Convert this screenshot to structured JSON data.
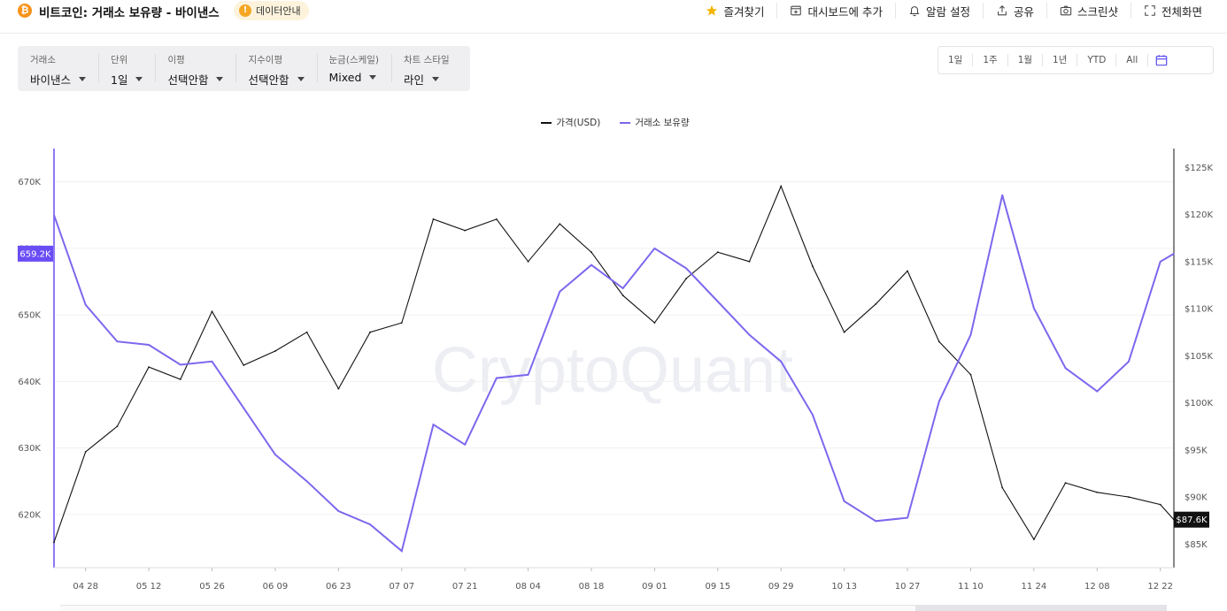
{
  "header": {
    "coin_symbol": "₿",
    "title": "비트코인: 거래소 보유량 - 바이낸스",
    "badge_label": "데이터안내",
    "actions": [
      {
        "label": "즐겨찾기",
        "icon": "star-icon"
      },
      {
        "label": "대시보드에 추가",
        "icon": "dashboard-add-icon"
      },
      {
        "label": "알람 설정",
        "icon": "bell-icon"
      },
      {
        "label": "공유",
        "icon": "share-icon"
      },
      {
        "label": "스크린샷",
        "icon": "camera-icon"
      },
      {
        "label": "전체화면",
        "icon": "fullscreen-icon"
      }
    ]
  },
  "controls": [
    {
      "caption": "거래소",
      "value": "바이낸스"
    },
    {
      "caption": "단위",
      "value": "1일"
    },
    {
      "caption": "이평",
      "value": "선택안함"
    },
    {
      "caption": "지수이평",
      "value": "선택안함"
    },
    {
      "caption": "눈금(스케일)",
      "value": "Mixed"
    },
    {
      "caption": "차트 스타일",
      "value": "라인"
    }
  ],
  "range_buttons": [
    "1일",
    "1주",
    "1월",
    "1년",
    "YTD",
    "All"
  ],
  "colors": {
    "price_line": "#111111",
    "reserve_line": "#7b68ee",
    "reserve_badge": "#6a4df5",
    "price_badge": "#111111",
    "star": "#f5b400",
    "coin": "#f7931a"
  },
  "chart_data": {
    "type": "line",
    "watermark": "CryptoQuant",
    "x_tick_labels": [
      "04 28",
      "05 12",
      "05 26",
      "06 09",
      "06 23",
      "07 07",
      "07 21",
      "08 04",
      "08 18",
      "09 01",
      "09 15",
      "09 29",
      "10 13",
      "10 27",
      "11 10",
      "11 24",
      "12 08",
      "12 22"
    ],
    "left_axis": {
      "ticks": [
        "670K",
        "660K",
        "650K",
        "640K",
        "630K",
        "620K"
      ],
      "range": [
        612000,
        675000
      ]
    },
    "right_axis": {
      "ticks": [
        "$125K",
        "$120K",
        "$115K",
        "$110K",
        "$105K",
        "$100K",
        "$95K",
        "$90K",
        "$85K"
      ],
      "range": [
        82500,
        127000
      ]
    },
    "current_reserve_label": "659.2K",
    "current_price_label": "$87.6K",
    "series": [
      {
        "name": "가격(USD)",
        "axis": "right",
        "dates": [
          "04-21",
          "04-28",
          "05-05",
          "05-12",
          "05-19",
          "05-26",
          "06-02",
          "06-09",
          "06-16",
          "06-23",
          "06-30",
          "07-07",
          "07-14",
          "07-21",
          "07-28",
          "08-04",
          "08-11",
          "08-18",
          "08-25",
          "09-01",
          "09-08",
          "09-15",
          "09-22",
          "09-29",
          "10-06",
          "10-13",
          "10-20",
          "10-27",
          "11-03",
          "11-10",
          "11-17",
          "11-24",
          "12-01",
          "12-08",
          "12-15",
          "12-22",
          "12-25"
        ],
        "values": [
          85200,
          94800,
          97500,
          103800,
          102500,
          109700,
          104000,
          105500,
          107500,
          101500,
          107500,
          108500,
          119500,
          118300,
          119500,
          115000,
          119000,
          116000,
          111400,
          108500,
          113200,
          116000,
          115000,
          123000,
          114500,
          107500,
          110500,
          114000,
          106500,
          103000,
          91000,
          85500,
          91500,
          90500,
          90000,
          89200,
          87600
        ]
      },
      {
        "name": "거래소 보유량",
        "axis": "left",
        "dates": [
          "04-21",
          "04-28",
          "05-05",
          "05-12",
          "05-19",
          "05-26",
          "06-02",
          "06-09",
          "06-16",
          "06-23",
          "06-30",
          "07-07",
          "07-14",
          "07-21",
          "07-28",
          "08-04",
          "08-11",
          "08-18",
          "08-25",
          "09-01",
          "09-08",
          "09-15",
          "09-22",
          "09-29",
          "10-06",
          "10-13",
          "10-20",
          "10-27",
          "11-03",
          "11-10",
          "11-17",
          "11-24",
          "12-01",
          "12-08",
          "12-15",
          "12-22",
          "12-25"
        ],
        "values": [
          665000,
          651500,
          646000,
          645500,
          642500,
          643000,
          636000,
          629000,
          625000,
          620500,
          618500,
          614500,
          633500,
          630500,
          640500,
          641000,
          653500,
          657500,
          654000,
          660000,
          657000,
          652000,
          647000,
          643000,
          635000,
          622000,
          619000,
          619500,
          637000,
          647000,
          668000,
          651000,
          642000,
          638500,
          643000,
          658000,
          659200
        ]
      }
    ]
  }
}
